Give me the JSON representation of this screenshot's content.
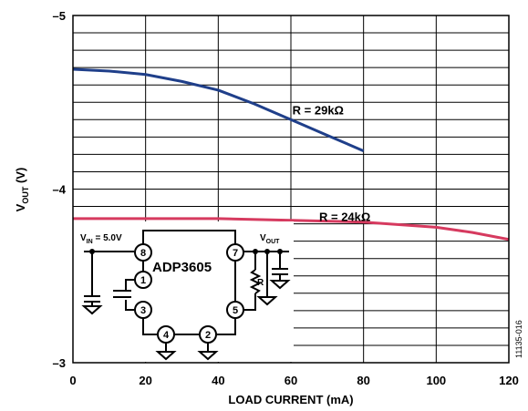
{
  "chart_data": {
    "type": "line",
    "title": "",
    "xlabel": "LOAD CURRENT (mA)",
    "ylabel": {
      "main": "V",
      "sub": "OUT",
      "suffix": " (V)"
    },
    "xlim": [
      0,
      120
    ],
    "ylim": [
      -3,
      -5
    ],
    "x_ticks": [
      "0",
      "20",
      "40",
      "60",
      "80",
      "100",
      "120"
    ],
    "y_ticks": [
      "–5",
      "–4",
      "–3"
    ],
    "grid": true,
    "series": [
      {
        "name": "R = 29kΩ",
        "color": "#1f3f8a",
        "x": [
          0,
          10,
          20,
          30,
          40,
          50,
          60,
          70,
          80
        ],
        "y": [
          -4.69,
          -4.68,
          -4.66,
          -4.62,
          -4.57,
          -4.49,
          -4.4,
          -4.31,
          -4.22
        ]
      },
      {
        "name": "R = 24kΩ",
        "color": "#d63a5f",
        "x": [
          0,
          20,
          40,
          60,
          80,
          100,
          110,
          120
        ],
        "y": [
          -3.83,
          -3.83,
          -3.83,
          -3.82,
          -3.81,
          -3.78,
          -3.75,
          -3.71
        ]
      }
    ]
  },
  "circuit": {
    "chip_name": "ADP3605",
    "vin_label": {
      "main": "V",
      "sub": "IN",
      "suffix": " = 5.0V"
    },
    "vout_label": {
      "main": "V",
      "sub": "OUT"
    },
    "resistor_label": "R",
    "pins": [
      "8",
      "1",
      "3",
      "4",
      "2",
      "7",
      "5"
    ]
  },
  "figure_id": "11135-016"
}
